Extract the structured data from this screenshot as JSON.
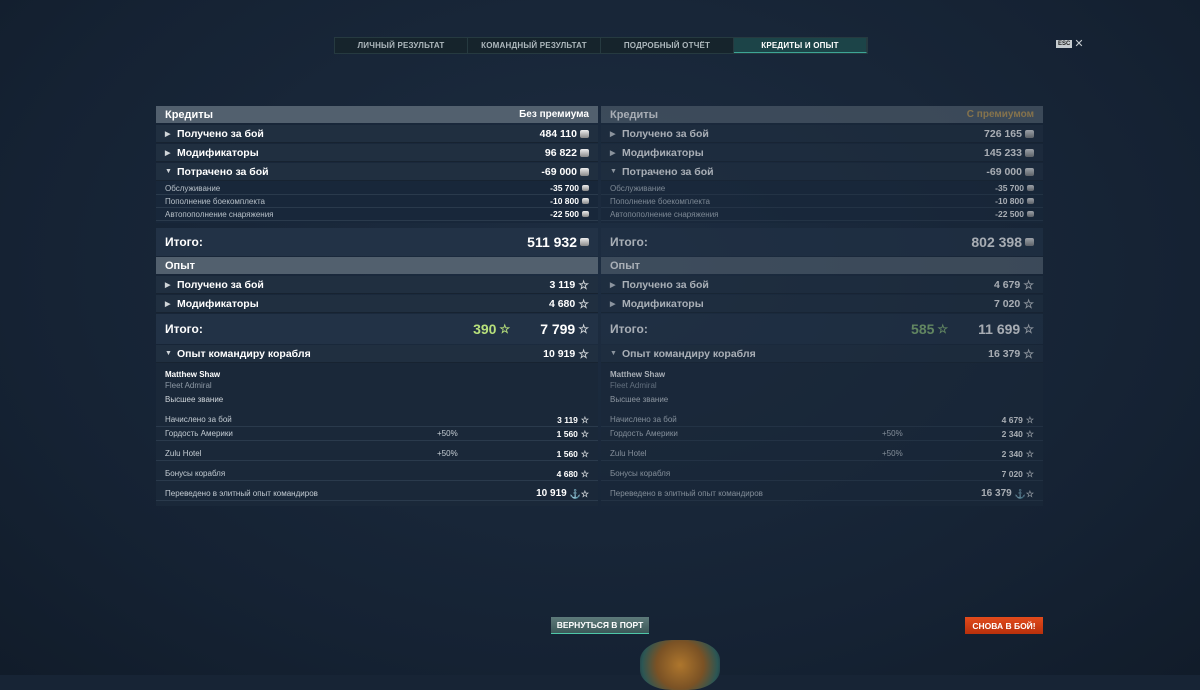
{
  "tabs": [
    "ЛИЧНЫЙ РЕЗУЛЬТАТ",
    "КОМАНДНЫЙ РЕЗУЛЬТАТ",
    "ПОДРОБНЫЙ ОТЧЁТ",
    "КРЕДИТЫ И ОПЫТ"
  ],
  "active_tab": 3,
  "esc": {
    "key": "ESC",
    "close": "✕"
  },
  "panels": [
    {
      "credits": {
        "title": "Кредиты",
        "mode": "Без премиума",
        "received_label": "Получено за бой",
        "received": "484 110",
        "modifiers_label": "Модификаторы",
        "modifiers": "96 822",
        "spent_label": "Потрачено за бой",
        "spent": "-69 000",
        "items": [
          {
            "label": "Обслуживание",
            "value": "-35 700"
          },
          {
            "label": "Пополнение боекомплекта",
            "value": "-10 800"
          },
          {
            "label": "Автопополнение снаряжения",
            "value": "-22 500"
          }
        ],
        "total_label": "Итого:",
        "total": "511 932"
      },
      "xp": {
        "title": "Опыт",
        "received_label": "Получено за бой",
        "received": "3 119",
        "modifiers_label": "Модификаторы",
        "modifiers": "4 680",
        "total_label": "Итого:",
        "free_xp": "390",
        "total": "7 799",
        "commander_label": "Опыт командиру корабля",
        "commander_xp": "10 919"
      },
      "commander": {
        "name": "Matthew Shaw",
        "rank": "Fleet Admiral",
        "status": "Высшее звание",
        "rows": [
          {
            "label": "Начислено за бой",
            "pct": "",
            "value": "3 119"
          },
          {
            "label": "Гордость Америки",
            "pct": "+50%",
            "value": "1 560"
          },
          {
            "label": "Zulu Hotel",
            "pct": "+50%",
            "value": "1 560"
          },
          {
            "label": "Бонусы корабля",
            "pct": "",
            "value": "4 680"
          },
          {
            "label": "Переведено в элитный опыт командиров",
            "pct": "",
            "value": "10 919"
          }
        ]
      }
    },
    {
      "credits": {
        "title": "Кредиты",
        "mode": "С премиумом",
        "received_label": "Получено за бой",
        "received": "726 165",
        "modifiers_label": "Модификаторы",
        "modifiers": "145 233",
        "spent_label": "Потрачено за бой",
        "spent": "-69 000",
        "items": [
          {
            "label": "Обслуживание",
            "value": "-35 700"
          },
          {
            "label": "Пополнение боекомплекта",
            "value": "-10 800"
          },
          {
            "label": "Автопополнение снаряжения",
            "value": "-22 500"
          }
        ],
        "total_label": "Итого:",
        "total": "802 398"
      },
      "xp": {
        "title": "Опыт",
        "received_label": "Получено за бой",
        "received": "4 679",
        "modifiers_label": "Модификаторы",
        "modifiers": "7 020",
        "total_label": "Итого:",
        "free_xp": "585",
        "total": "11 699",
        "commander_label": "Опыт командиру корабля",
        "commander_xp": "16 379"
      },
      "commander": {
        "name": "Matthew Shaw",
        "rank": "Fleet Admiral",
        "status": "Высшее звание",
        "rows": [
          {
            "label": "Начислено за бой",
            "pct": "",
            "value": "4 679"
          },
          {
            "label": "Гордость Америки",
            "pct": "+50%",
            "value": "2 340"
          },
          {
            "label": "Zulu Hotel",
            "pct": "+50%",
            "value": "2 340"
          },
          {
            "label": "Бонусы корабля",
            "pct": "",
            "value": "7 020"
          },
          {
            "label": "Переведено в элитный опыт командиров",
            "pct": "",
            "value": "16 379"
          }
        ]
      }
    }
  ],
  "buttons": {
    "port": "ВЕРНУТЬСЯ В ПОРТ",
    "battle": "СНОВА В БОЙ!"
  },
  "colors": {
    "premium_label": "#c9a35a",
    "free_xp": "#b7e07b",
    "battle_button": "#d63d12",
    "active_tab": "#1c4448"
  }
}
